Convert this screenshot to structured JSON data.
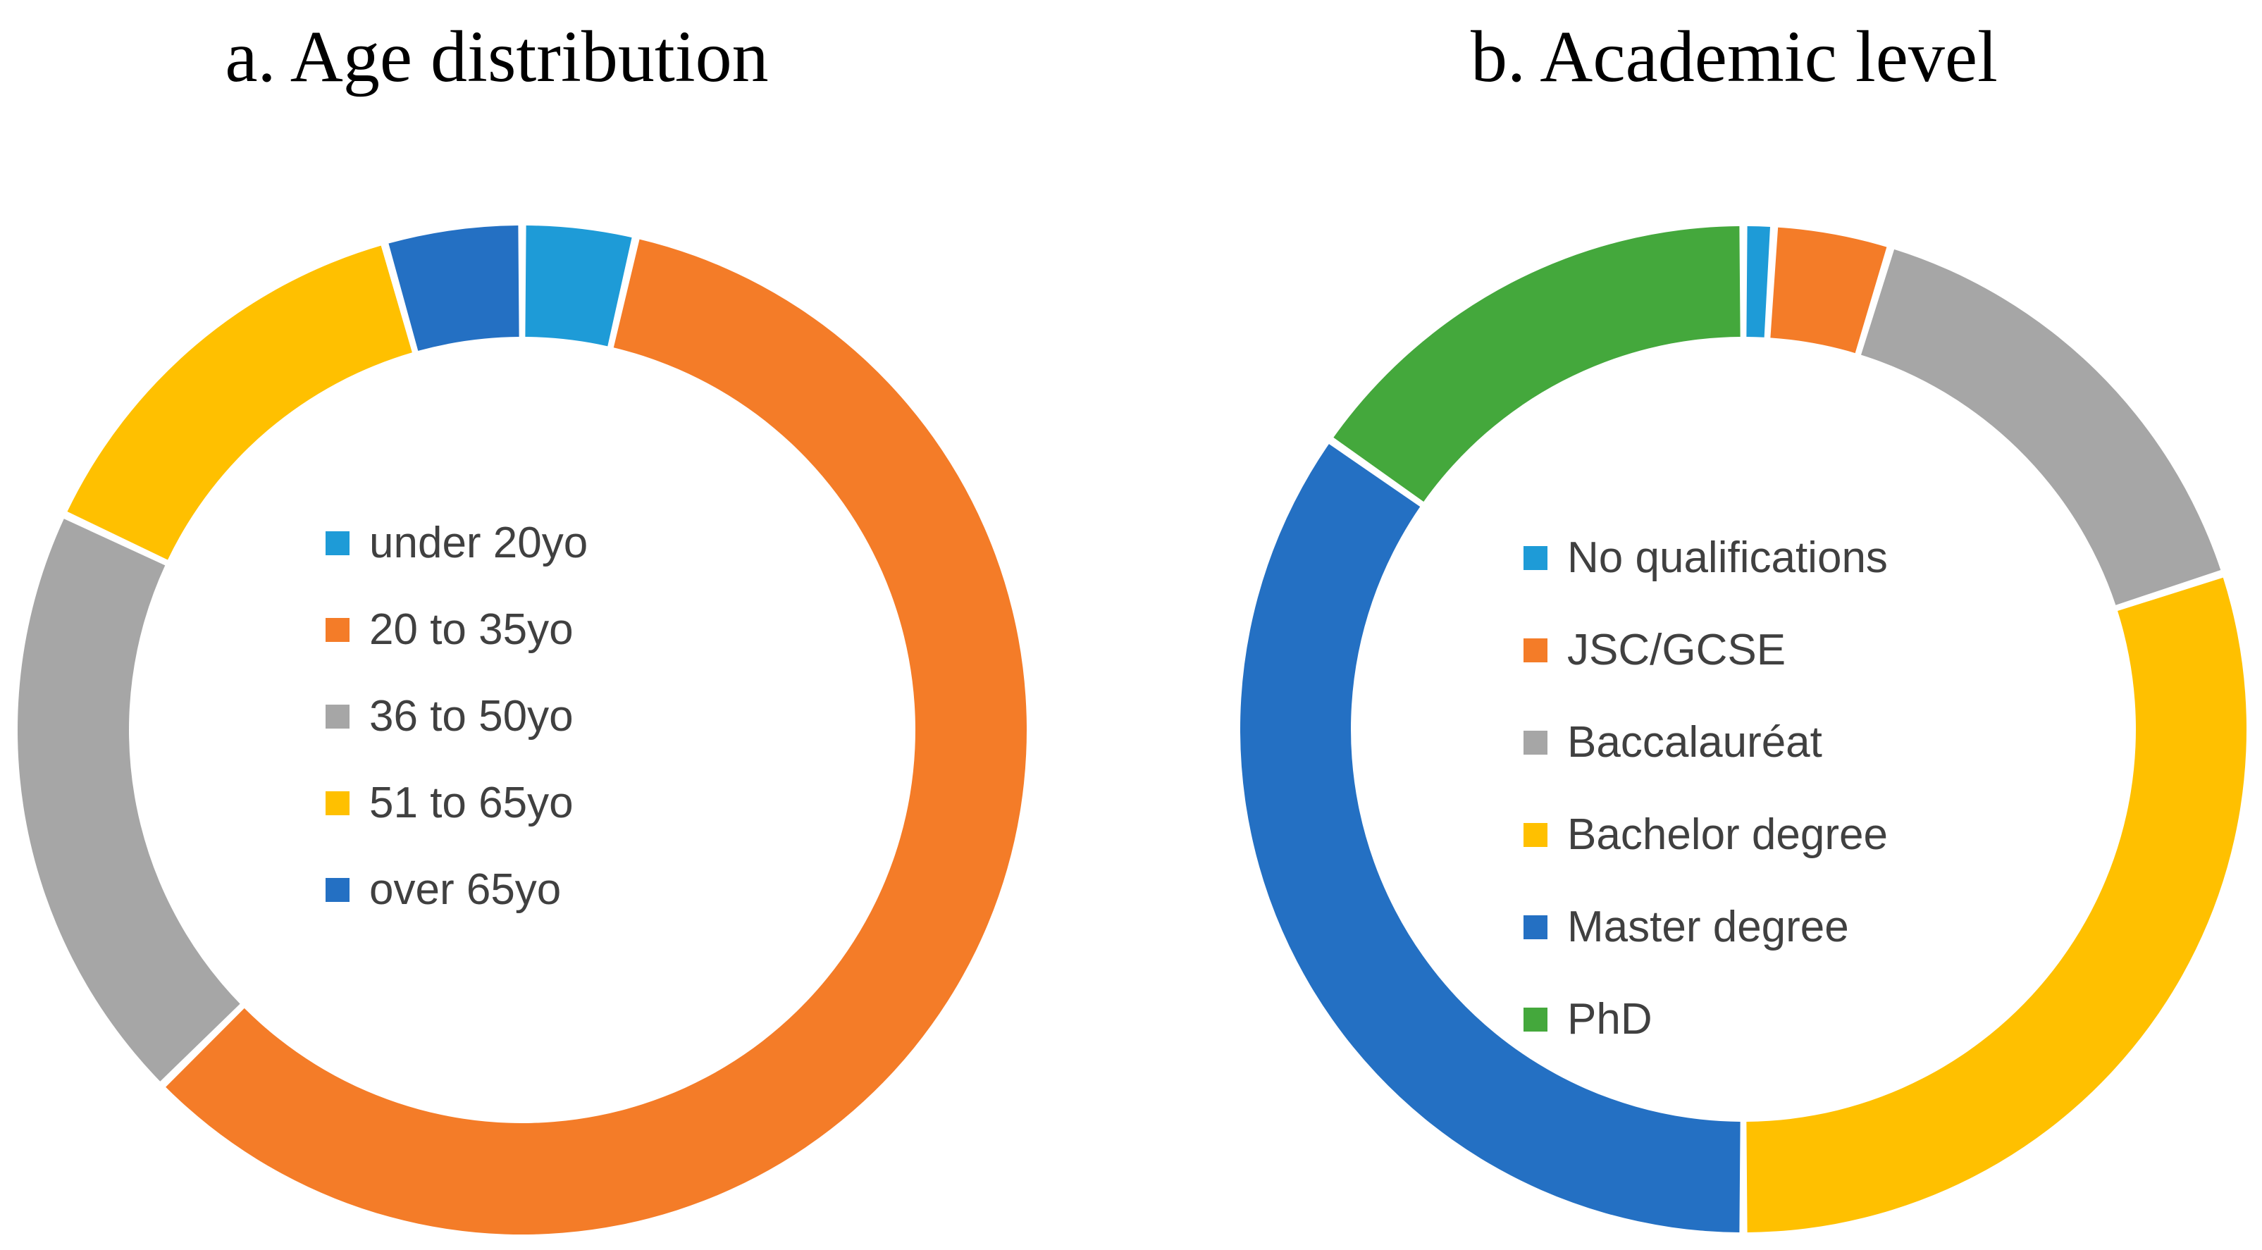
{
  "figure": {
    "background_color": "#FFFFFF",
    "title_color": "#000000",
    "legend_text_color": "#404040",
    "segment_gap_color": "#FFFFFF"
  },
  "chart_data": [
    {
      "type": "pie",
      "subtype": "donut",
      "panel_label": "a",
      "title": "a. Age distribution",
      "legend_position": "center-of-donut",
      "direction": "clockwise",
      "start_angle_deg": 0,
      "categories": [
        "under 20yo",
        "20 to 35yo",
        "36 to 50yo",
        "51 to 65yo",
        "over 65yo"
      ],
      "values_percent": [
        3.6,
        59.0,
        19.4,
        13.6,
        4.4
      ],
      "angles_deg": [
        13.0,
        212.4,
        69.8,
        49.0,
        15.8
      ],
      "colors": [
        "#1E9BD7",
        "#F47C28",
        "#A6A6A6",
        "#FFC000",
        "#2470C3"
      ]
    },
    {
      "type": "pie",
      "subtype": "donut",
      "panel_label": "b",
      "title": "b. Academic level",
      "legend_position": "center-of-donut",
      "direction": "clockwise",
      "start_angle_deg": 0,
      "categories": [
        "No qualifications",
        "JSC/GCSE",
        "Baccalauréat",
        "Bachelor degree",
        "Master degree",
        "PhD"
      ],
      "values_percent": [
        1.0,
        3.8,
        15.3,
        30.0,
        34.7,
        15.2
      ],
      "angles_deg": [
        3.5,
        13.5,
        55.0,
        108.0,
        125.0,
        55.0
      ],
      "colors": [
        "#1E9BD7",
        "#F47C28",
        "#A6A6A6",
        "#FFC000",
        "#2470C3",
        "#44A83C"
      ]
    }
  ]
}
